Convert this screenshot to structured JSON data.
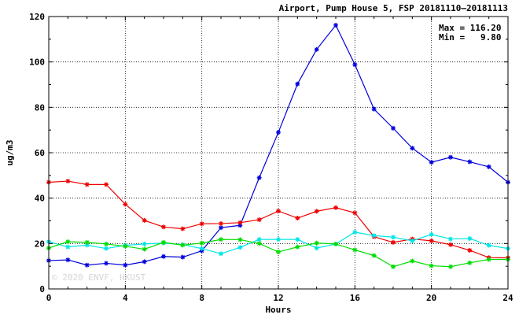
{
  "chart_data": {
    "type": "line",
    "title": "Airport, Pump House 5, FSP 20181110–20181113",
    "xlabel": "Hours",
    "ylabel": "ug/m3",
    "xlim": [
      0,
      24
    ],
    "ylim": [
      0,
      120
    ],
    "xticks": [
      0,
      4,
      8,
      12,
      16,
      20,
      24
    ],
    "yticks": [
      0,
      20,
      40,
      60,
      80,
      100,
      120
    ],
    "grid": true,
    "stats": {
      "max_label": "Max = 116.20",
      "min_label": "Min =   9.80"
    },
    "watermark": "© 2020  ENVF, HKUST",
    "x": [
      0,
      1,
      2,
      3,
      4,
      5,
      6,
      7,
      8,
      9,
      10,
      11,
      12,
      13,
      14,
      15,
      16,
      17,
      18,
      19,
      20,
      21,
      22,
      23,
      24
    ],
    "series": [
      {
        "color": "#0000dd",
        "values": [
          12.5,
          12.8,
          10.5,
          11.3,
          10.5,
          12.0,
          14.3,
          14.0,
          16.8,
          27.0,
          28.0,
          49.0,
          69.0,
          90.3,
          105.5,
          116.2,
          98.8,
          79.2,
          70.8,
          62.0,
          55.8,
          58.0,
          56.0,
          53.8,
          47.0
        ]
      },
      {
        "color": "#ee0000",
        "values": [
          47.0,
          47.5,
          46.0,
          46.0,
          37.3,
          30.2,
          27.3,
          26.5,
          28.7,
          28.8,
          29.2,
          30.5,
          34.3,
          31.2,
          34.2,
          35.8,
          33.5,
          23.0,
          20.5,
          22.0,
          21.2,
          19.5,
          17.0,
          13.8,
          13.7
        ]
      },
      {
        "color": "#00e5e5",
        "values": [
          20.8,
          18.5,
          19.3,
          17.8,
          19.2,
          19.8,
          20.2,
          19.5,
          17.8,
          15.5,
          18.3,
          21.8,
          21.8,
          21.8,
          18.0,
          19.8,
          25.0,
          23.5,
          22.8,
          21.2,
          24.0,
          22.0,
          22.2,
          19.2,
          17.8
        ]
      },
      {
        "color": "#00dd00",
        "values": [
          18.0,
          20.8,
          20.5,
          19.8,
          18.8,
          17.5,
          20.5,
          19.3,
          20.2,
          21.8,
          21.7,
          20.0,
          16.3,
          18.5,
          20.2,
          19.8,
          17.2,
          14.7,
          9.8,
          12.3,
          10.2,
          9.8,
          11.5,
          13.0,
          13.0
        ]
      }
    ]
  }
}
